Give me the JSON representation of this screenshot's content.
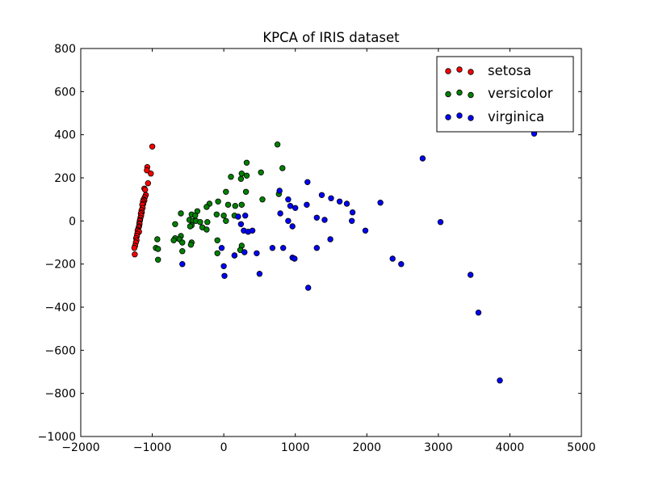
{
  "chart_data": {
    "type": "scatter",
    "title": "KPCA of IRIS dataset",
    "xlabel": "",
    "ylabel": "",
    "xlim": [
      -2000,
      5000
    ],
    "ylim": [
      -1000,
      800
    ],
    "xticks": [
      -2000,
      -1000,
      0,
      1000,
      2000,
      3000,
      4000,
      5000
    ],
    "yticks": [
      -1000,
      -800,
      -600,
      -400,
      -200,
      0,
      200,
      400,
      600,
      800
    ],
    "grid": false,
    "legend_position": "top-right",
    "series": [
      {
        "name": "setosa",
        "color": "#ff0000",
        "points": [
          [
            -1000,
            345
          ],
          [
            -1070,
            250
          ],
          [
            -1075,
            235
          ],
          [
            -1020,
            220
          ],
          [
            -1060,
            175
          ],
          [
            -1110,
            150
          ],
          [
            -1100,
            145
          ],
          [
            -1090,
            120
          ],
          [
            -1105,
            110
          ],
          [
            -1120,
            100
          ],
          [
            -1110,
            95
          ],
          [
            -1130,
            90
          ],
          [
            -1125,
            80
          ],
          [
            -1140,
            75
          ],
          [
            -1135,
            60
          ],
          [
            -1150,
            50
          ],
          [
            -1145,
            40
          ],
          [
            -1160,
            35
          ],
          [
            -1155,
            25
          ],
          [
            -1165,
            15
          ],
          [
            -1170,
            5
          ],
          [
            -1175,
            0
          ],
          [
            -1180,
            -10
          ],
          [
            -1178,
            -15
          ],
          [
            -1185,
            -25
          ],
          [
            -1190,
            -30
          ],
          [
            -1200,
            -40
          ],
          [
            -1205,
            -45
          ],
          [
            -1185,
            -50
          ],
          [
            -1210,
            -60
          ],
          [
            -1215,
            -70
          ],
          [
            -1225,
            -80
          ],
          [
            -1220,
            -90
          ],
          [
            -1230,
            -100
          ],
          [
            -1240,
            -115
          ],
          [
            -1250,
            -125
          ],
          [
            -1245,
            -155
          ]
        ]
      },
      {
        "name": "versicolor",
        "color": "#008000",
        "points": [
          [
            750,
            355
          ],
          [
            320,
            270
          ],
          [
            820,
            245
          ],
          [
            250,
            220
          ],
          [
            100,
            205
          ],
          [
            320,
            210
          ],
          [
            240,
            195
          ],
          [
            520,
            225
          ],
          [
            310,
            135
          ],
          [
            30,
            135
          ],
          [
            770,
            125
          ],
          [
            540,
            100
          ],
          [
            -80,
            90
          ],
          [
            60,
            75
          ],
          [
            -200,
            80
          ],
          [
            160,
            70
          ],
          [
            250,
            75
          ],
          [
            -240,
            65
          ],
          [
            -370,
            45
          ],
          [
            -600,
            35
          ],
          [
            -450,
            30
          ],
          [
            -400,
            25
          ],
          [
            -480,
            5
          ],
          [
            -100,
            30
          ],
          [
            0,
            25
          ],
          [
            150,
            25
          ],
          [
            -430,
            0
          ],
          [
            -390,
            0
          ],
          [
            -330,
            -5
          ],
          [
            30,
            0
          ],
          [
            -230,
            -5
          ],
          [
            -680,
            -15
          ],
          [
            -450,
            -20
          ],
          [
            -470,
            -25
          ],
          [
            -300,
            -30
          ],
          [
            -240,
            -40
          ],
          [
            -600,
            -70
          ],
          [
            -680,
            -80
          ],
          [
            -620,
            -85
          ],
          [
            -700,
            -90
          ],
          [
            -450,
            -100
          ],
          [
            -930,
            -85
          ],
          [
            -580,
            -100
          ],
          [
            -460,
            -110
          ],
          [
            -90,
            -90
          ],
          [
            250,
            -115
          ],
          [
            -950,
            -125
          ],
          [
            -920,
            -130
          ],
          [
            -580,
            -140
          ],
          [
            230,
            -135
          ],
          [
            -90,
            -150
          ],
          [
            150,
            -160
          ],
          [
            -920,
            -180
          ]
        ]
      },
      {
        "name": "virginica",
        "color": "#0000ff",
        "points": [
          [
            4340,
            405
          ],
          [
            2780,
            290
          ],
          [
            1170,
            180
          ],
          [
            780,
            140
          ],
          [
            1370,
            120
          ],
          [
            1500,
            105
          ],
          [
            900,
            100
          ],
          [
            1620,
            90
          ],
          [
            1720,
            80
          ],
          [
            2190,
            85
          ],
          [
            930,
            70
          ],
          [
            1000,
            60
          ],
          [
            1160,
            75
          ],
          [
            790,
            35
          ],
          [
            1800,
            40
          ],
          [
            1300,
            15
          ],
          [
            1410,
            5
          ],
          [
            1790,
            0
          ],
          [
            900,
            0
          ],
          [
            960,
            -25
          ],
          [
            240,
            -15
          ],
          [
            300,
            25
          ],
          [
            200,
            20
          ],
          [
            280,
            -45
          ],
          [
            340,
            -50
          ],
          [
            400,
            -45
          ],
          [
            1980,
            -45
          ],
          [
            3030,
            -5
          ],
          [
            1490,
            -85
          ],
          [
            680,
            -125
          ],
          [
            830,
            -125
          ],
          [
            1300,
            -125
          ],
          [
            -30,
            -125
          ],
          [
            290,
            -145
          ],
          [
            460,
            -150
          ],
          [
            150,
            -160
          ],
          [
            960,
            -170
          ],
          [
            990,
            -175
          ],
          [
            2360,
            -175
          ],
          [
            2480,
            -200
          ],
          [
            -580,
            -200
          ],
          [
            0,
            -210
          ],
          [
            500,
            -245
          ],
          [
            3450,
            -250
          ],
          [
            10,
            -255
          ],
          [
            1180,
            -310
          ],
          [
            3560,
            -425
          ],
          [
            3860,
            -740
          ]
        ]
      }
    ]
  }
}
